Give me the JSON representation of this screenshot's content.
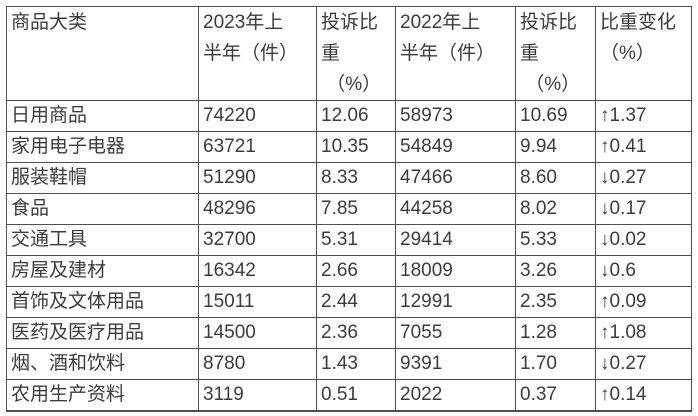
{
  "table": {
    "title_semantic": "complaints-by-product-category-comparison",
    "text_color": "#3c3c3c",
    "border_color": "#4f4f4f",
    "headers": [
      "商品大类",
      "2023年上\n半年（件）",
      "投诉比\n重\n （%）",
      "2022年上\n半年（件）",
      "投诉比\n重\n （%）",
      "比重变化\n（%）"
    ],
    "columns_semantic": [
      "category",
      "h1_2023_count",
      "h1_2023_share_pct",
      "h1_2022_count",
      "h1_2022_share_pct",
      "share_change_pct"
    ],
    "rows": [
      [
        "日用商品",
        "74220",
        "12.06",
        "58973",
        "10.69",
        "↑1.37"
      ],
      [
        "家用电子电器",
        "63721",
        "10.35",
        "54849",
        "9.94",
        "↑0.41"
      ],
      [
        "服装鞋帽",
        "51290",
        "8.33",
        "47466",
        "8.60",
        "↓0.27"
      ],
      [
        "食品",
        "48296",
        "7.85",
        "44258",
        "8.02",
        "↓0.17"
      ],
      [
        "交通工具",
        "32700",
        "5.31",
        "29414",
        "5.33",
        "↓0.02"
      ],
      [
        "房屋及建材",
        "16342",
        "2.66",
        "18009",
        "3.26",
        "↓0.6"
      ],
      [
        "首饰及文体用品",
        "15011",
        "2.44",
        "12991",
        "2.35",
        "↑0.09"
      ],
      [
        "医药及医疗用品",
        "14500",
        "2.36",
        "7055",
        "1.28",
        "↑1.08"
      ],
      [
        "烟、酒和饮料",
        "8780",
        "1.43",
        "9391",
        "1.70",
        "↓0.27"
      ],
      [
        "农用生产资料",
        "3119",
        "0.51",
        "2022",
        "0.37",
        "↑0.14"
      ]
    ]
  }
}
